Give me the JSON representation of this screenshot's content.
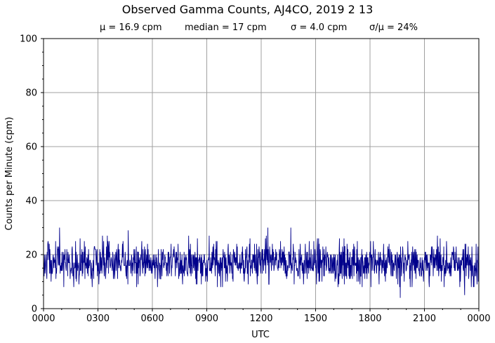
{
  "chart_data": {
    "type": "line",
    "title": "Observed Gamma Counts, AJ4CO, 2019 2 13",
    "stats": [
      "μ = 16.9 cpm",
      "median = 17 cpm",
      "σ = 4.0 cpm",
      "σ/μ = 24%"
    ],
    "xlabel": "UTC",
    "ylabel": "Counts per Minute (cpm)",
    "xticks": [
      "0000",
      "0300",
      "0600",
      "0900",
      "1200",
      "1500",
      "1800",
      "2100",
      "0000"
    ],
    "yticks": [
      0,
      20,
      40,
      60,
      80,
      100
    ],
    "ylim": [
      0,
      100
    ],
    "xlim_minutes": [
      0,
      1440
    ],
    "grid": true,
    "color": "#00008b",
    "series_summary": {
      "count_points": 1440,
      "mean": 16.9,
      "median": 17,
      "std": 4.0,
      "min_observed": 4,
      "max_observed": 30
    },
    "notable_points": [
      {
        "minute": 53,
        "value": 30
      },
      {
        "minute": 280,
        "value": 29
      },
      {
        "minute": 742,
        "value": 30
      },
      {
        "minute": 818,
        "value": 30
      },
      {
        "minute": 1180,
        "value": 4
      },
      {
        "minute": 1393,
        "value": 5
      }
    ]
  }
}
